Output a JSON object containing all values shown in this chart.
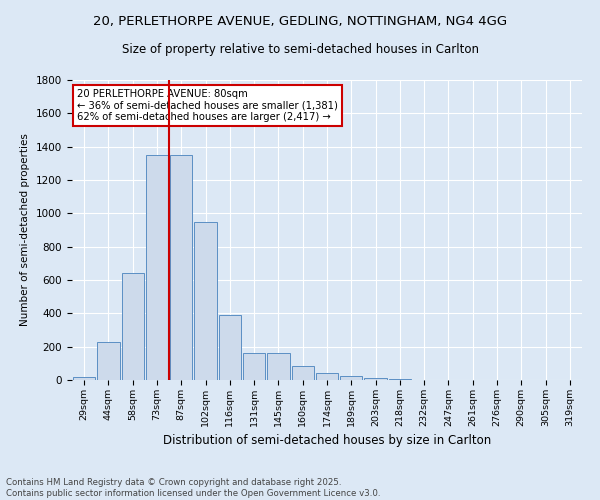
{
  "title1": "20, PERLETHORPE AVENUE, GEDLING, NOTTINGHAM, NG4 4GG",
  "title2": "Size of property relative to semi-detached houses in Carlton",
  "xlabel": "Distribution of semi-detached houses by size in Carlton",
  "ylabel": "Number of semi-detached properties",
  "footer1": "Contains HM Land Registry data © Crown copyright and database right 2025.",
  "footer2": "Contains public sector information licensed under the Open Government Licence v3.0.",
  "bin_labels": [
    "29sqm",
    "44sqm",
    "58sqm",
    "73sqm",
    "87sqm",
    "102sqm",
    "116sqm",
    "131sqm",
    "145sqm",
    "160sqm",
    "174sqm",
    "189sqm",
    "203sqm",
    "218sqm",
    "232sqm",
    "247sqm",
    "261sqm",
    "276sqm",
    "290sqm",
    "305sqm",
    "319sqm"
  ],
  "bin_values": [
    20,
    230,
    640,
    1350,
    1350,
    950,
    390,
    165,
    165,
    85,
    40,
    25,
    10,
    5,
    2,
    1,
    1,
    0,
    0,
    0,
    0
  ],
  "bar_color": "#cddaeb",
  "bar_edge_color": "#5b8fc4",
  "bg_color": "#dce8f5",
  "grid_color": "#ffffff",
  "vline_color": "#cc0000",
  "annotation_box_color": "#cc0000",
  "ylim": [
    0,
    1800
  ],
  "yticks": [
    0,
    200,
    400,
    600,
    800,
    1000,
    1200,
    1400,
    1600,
    1800
  ]
}
